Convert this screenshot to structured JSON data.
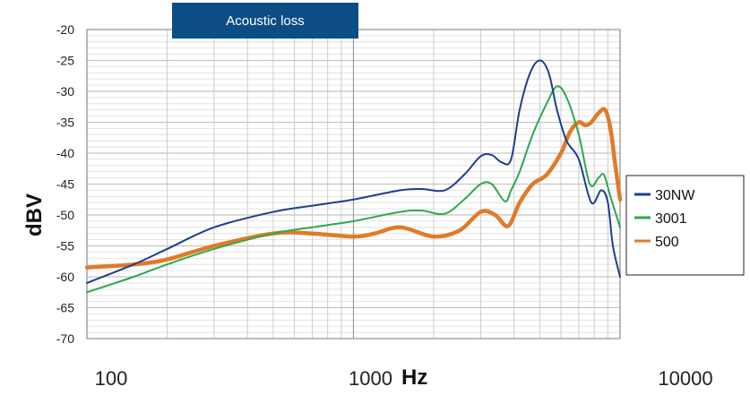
{
  "chart_data": {
    "type": "line",
    "title": "Acoustic loss",
    "xlabel": "Hz",
    "ylabel": "dBV",
    "xscale": "log",
    "xlim": [
      100,
      10000
    ],
    "ylim": [
      -70,
      -20
    ],
    "xticks": [
      "100",
      "1000",
      "10000"
    ],
    "yticks": [
      "-20",
      "-25",
      "-30",
      "-35",
      "-40",
      "-45",
      "-50",
      "-55",
      "-60",
      "-65",
      "-70"
    ],
    "grid": true,
    "legend_position": "right",
    "series": [
      {
        "name": "30NW",
        "color": "#1f3e8f",
        "points": [
          [
            100,
            -61
          ],
          [
            150,
            -58
          ],
          [
            200,
            -55.5
          ],
          [
            300,
            -52
          ],
          [
            500,
            -49.5
          ],
          [
            700,
            -48.5
          ],
          [
            1000,
            -47.5
          ],
          [
            1500,
            -46
          ],
          [
            1800,
            -45.8
          ],
          [
            2200,
            -46
          ],
          [
            2600,
            -43.5
          ],
          [
            3000,
            -40.5
          ],
          [
            3300,
            -40.3
          ],
          [
            3600,
            -41.5
          ],
          [
            3900,
            -41
          ],
          [
            4200,
            -33
          ],
          [
            4600,
            -27
          ],
          [
            5000,
            -25
          ],
          [
            5400,
            -27
          ],
          [
            5800,
            -33
          ],
          [
            6300,
            -38
          ],
          [
            7000,
            -41
          ],
          [
            7800,
            -48
          ],
          [
            8500,
            -46
          ],
          [
            9000,
            -48
          ],
          [
            9400,
            -55
          ],
          [
            10000,
            -60
          ]
        ]
      },
      {
        "name": "3001",
        "color": "#2ea84c",
        "points": [
          [
            100,
            -62.5
          ],
          [
            150,
            -60
          ],
          [
            200,
            -58
          ],
          [
            300,
            -55.5
          ],
          [
            500,
            -53
          ],
          [
            700,
            -52
          ],
          [
            1000,
            -51
          ],
          [
            1500,
            -49.5
          ],
          [
            1800,
            -49.3
          ],
          [
            2200,
            -49.8
          ],
          [
            2600,
            -47.5
          ],
          [
            3000,
            -45
          ],
          [
            3300,
            -45
          ],
          [
            3700,
            -47.8
          ],
          [
            3900,
            -46
          ],
          [
            4200,
            -43
          ],
          [
            4700,
            -37
          ],
          [
            5300,
            -32
          ],
          [
            5800,
            -29.2
          ],
          [
            6300,
            -31
          ],
          [
            7000,
            -37
          ],
          [
            7700,
            -45
          ],
          [
            8300,
            -44
          ],
          [
            8700,
            -43.5
          ],
          [
            9200,
            -47
          ],
          [
            10000,
            -52
          ]
        ]
      },
      {
        "name": "500",
        "color": "#e07b2a",
        "points": [
          [
            100,
            -58.5
          ],
          [
            150,
            -58
          ],
          [
            200,
            -57.2
          ],
          [
            300,
            -55
          ],
          [
            500,
            -53
          ],
          [
            700,
            -53
          ],
          [
            1000,
            -53.5
          ],
          [
            1200,
            -53
          ],
          [
            1500,
            -52
          ],
          [
            2000,
            -53.5
          ],
          [
            2500,
            -52.5
          ],
          [
            3000,
            -49.5
          ],
          [
            3400,
            -50
          ],
          [
            3800,
            -51.8
          ],
          [
            4200,
            -48
          ],
          [
            4700,
            -45
          ],
          [
            5300,
            -43.5
          ],
          [
            6000,
            -40
          ],
          [
            6500,
            -36.5
          ],
          [
            7000,
            -35
          ],
          [
            7400,
            -35.5
          ],
          [
            7800,
            -35
          ],
          [
            8300,
            -33.5
          ],
          [
            8800,
            -33
          ],
          [
            9200,
            -36
          ],
          [
            9600,
            -42
          ],
          [
            10000,
            -47.5
          ]
        ]
      }
    ]
  }
}
